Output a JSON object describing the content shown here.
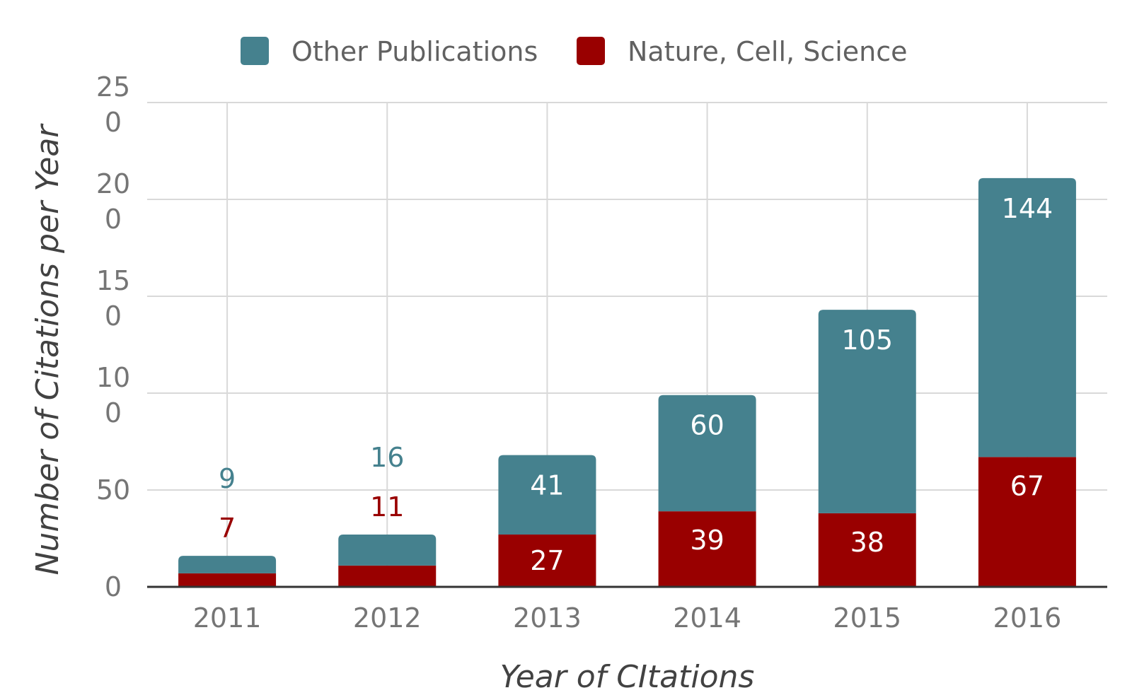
{
  "chart_data": {
    "type": "bar",
    "stacked": true,
    "categories": [
      "2011",
      "2012",
      "2013",
      "2014",
      "2015",
      "2016"
    ],
    "series": [
      {
        "name": "Nature, Cell, Science",
        "color": "#990000",
        "values": [
          7,
          11,
          27,
          39,
          38,
          67
        ]
      },
      {
        "name": "Other Publications",
        "color": "#45818e",
        "values": [
          9,
          16,
          41,
          60,
          105,
          144
        ]
      }
    ],
    "legend_order": [
      "Other Publications",
      "Nature, Cell, Science"
    ],
    "legend_position": "top",
    "xlabel": "Year of CItations",
    "ylabel": "Number of Citations per Year",
    "ylim": [
      0,
      250
    ],
    "yticks": [
      {
        "value": 0,
        "lines": [
          "0"
        ]
      },
      {
        "value": 50,
        "lines": [
          "50"
        ]
      },
      {
        "value": 100,
        "lines": [
          "10",
          "0"
        ]
      },
      {
        "value": 150,
        "lines": [
          "15",
          "0"
        ]
      },
      {
        "value": 200,
        "lines": [
          "20",
          "0"
        ]
      },
      {
        "value": 250,
        "lines": [
          "25",
          "0"
        ]
      }
    ],
    "grid": true,
    "label_color_on_bar": "#ffffff"
  }
}
